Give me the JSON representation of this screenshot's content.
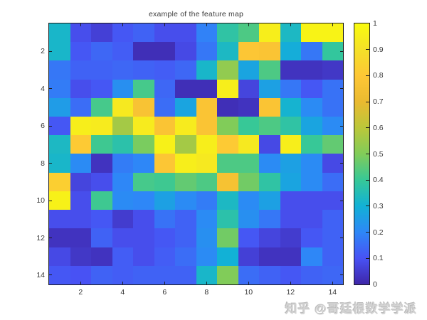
{
  "title": "example of the feature map",
  "watermark": "知乎 @哥廷根数学学派",
  "chart_data": {
    "type": "heatmap",
    "title": "example of the feature map",
    "grid_rows": 14,
    "grid_cols": 14,
    "x_ticks": [
      2,
      4,
      6,
      8,
      10,
      12,
      14
    ],
    "y_ticks": [
      2,
      4,
      6,
      8,
      10,
      12,
      14
    ],
    "value_range": [
      0,
      1
    ],
    "colorbar_tick_labels": [
      "0",
      "0.1",
      "0.2",
      "0.3",
      "0.4",
      "0.5",
      "0.6",
      "0.7",
      "0.8",
      "0.9",
      "1"
    ],
    "colormap_name": "parula",
    "colormap": [
      "#3e26a8",
      "#4852f4",
      "#2e87f7",
      "#12b1d6",
      "#37c897",
      "#81cc59",
      "#bbc73a",
      "#eaba30",
      "#fec735",
      "#f5e128",
      "#f9fb0e"
    ],
    "values": [
      [
        0.32,
        0.09,
        0.06,
        0.11,
        0.13,
        0.09,
        0.09,
        0.19,
        0.38,
        0.43,
        0.95,
        0.33,
        0.97,
        0.97
      ],
      [
        0.32,
        0.11,
        0.14,
        0.12,
        0.02,
        0.02,
        0.08,
        0.17,
        0.33,
        0.79,
        0.78,
        0.29,
        0.17,
        0.39
      ],
      [
        0.17,
        0.13,
        0.13,
        0.14,
        0.13,
        0.12,
        0.14,
        0.32,
        0.53,
        0.27,
        0.43,
        0.03,
        0.03,
        0.04
      ],
      [
        0.18,
        0.09,
        0.11,
        0.22,
        0.42,
        0.14,
        0.02,
        0.02,
        0.95,
        0.07,
        0.26,
        0.17,
        0.11,
        0.16
      ],
      [
        0.25,
        0.15,
        0.42,
        0.93,
        0.77,
        0.15,
        0.27,
        0.78,
        0.02,
        0.03,
        0.78,
        0.31,
        0.21,
        0.16
      ],
      [
        0.11,
        0.95,
        0.94,
        0.56,
        0.94,
        0.78,
        0.94,
        0.78,
        0.5,
        0.4,
        0.43,
        0.38,
        0.27,
        0.21
      ],
      [
        0.33,
        0.81,
        0.41,
        0.37,
        0.49,
        0.96,
        0.56,
        0.95,
        0.81,
        0.93,
        0.08,
        0.95,
        0.4,
        0.46
      ],
      [
        0.32,
        0.21,
        0.03,
        0.18,
        0.2,
        0.79,
        0.95,
        0.93,
        0.43,
        0.43,
        0.21,
        0.26,
        0.21,
        0.08
      ],
      [
        0.83,
        0.07,
        0.09,
        0.2,
        0.42,
        0.41,
        0.46,
        0.43,
        0.76,
        0.48,
        0.38,
        0.27,
        0.21,
        0.15
      ],
      [
        0.96,
        0.09,
        0.41,
        0.21,
        0.2,
        0.26,
        0.21,
        0.18,
        0.33,
        0.21,
        0.26,
        0.09,
        0.09,
        0.09
      ],
      [
        0.09,
        0.09,
        0.11,
        0.05,
        0.09,
        0.16,
        0.13,
        0.21,
        0.37,
        0.22,
        0.17,
        0.09,
        0.09,
        0.13
      ],
      [
        0.03,
        0.03,
        0.13,
        0.09,
        0.09,
        0.11,
        0.13,
        0.22,
        0.48,
        0.11,
        0.07,
        0.05,
        0.11,
        0.13
      ],
      [
        0.08,
        0.04,
        0.03,
        0.12,
        0.09,
        0.12,
        0.15,
        0.21,
        0.3,
        0.06,
        0.03,
        0.03,
        0.2,
        0.13
      ],
      [
        0.11,
        0.1,
        0.13,
        0.12,
        0.13,
        0.13,
        0.13,
        0.32,
        0.5,
        0.15,
        0.13,
        0.11,
        0.13,
        0.14
      ]
    ]
  }
}
